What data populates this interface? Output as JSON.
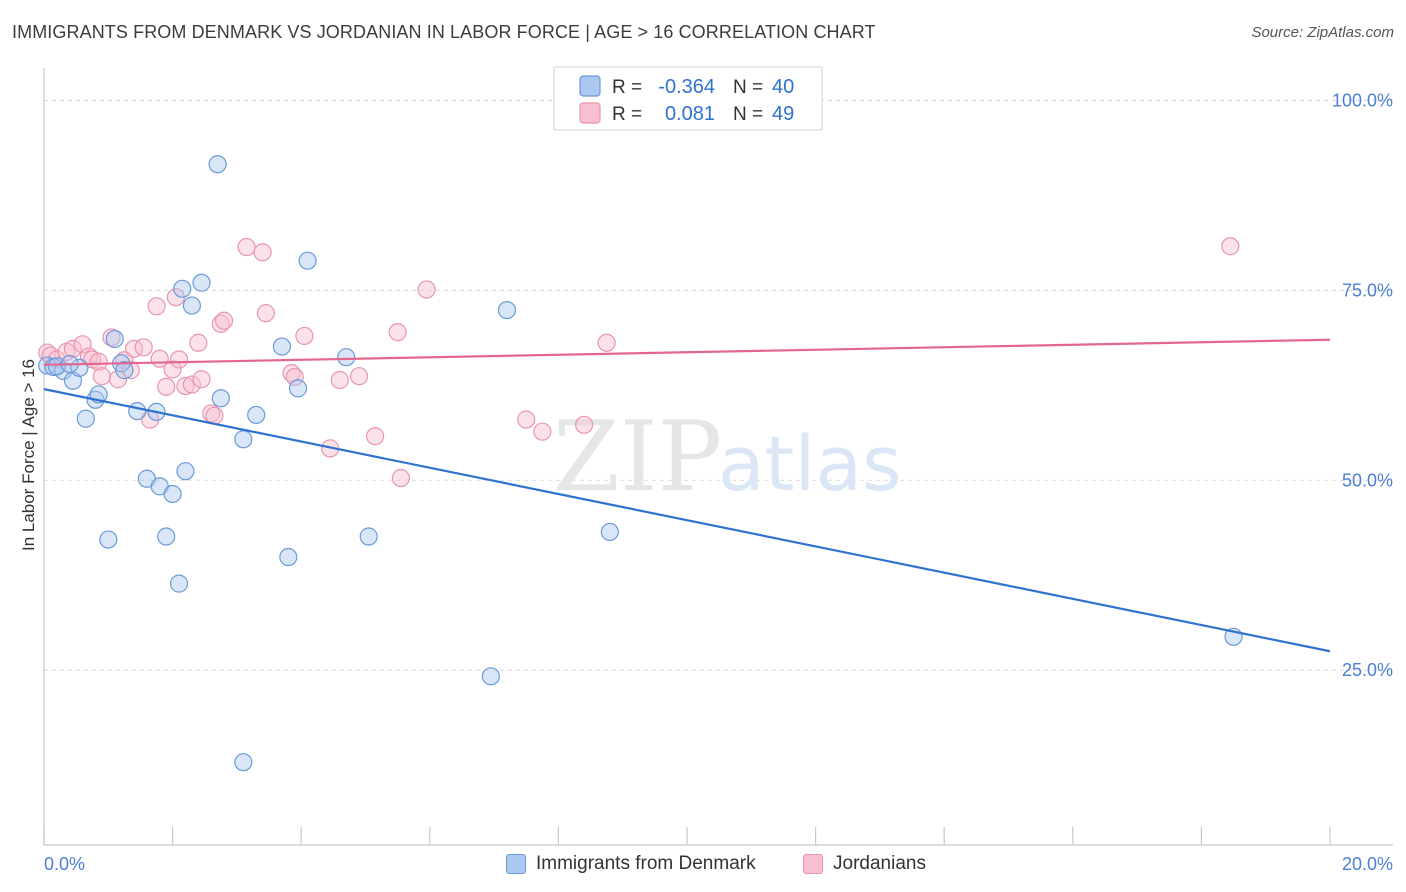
{
  "title": "IMMIGRANTS FROM DENMARK VS JORDANIAN IN LABOR FORCE | AGE > 16 CORRELATION CHART",
  "source": "Source: ZipAtlas.com",
  "colors": {
    "blue_fill": "#aac8f0",
    "blue_stroke": "#6a9ad8",
    "blue_line": "#2f72d0",
    "pink_fill": "#f7bfd0",
    "pink_stroke": "#e895b0",
    "pink_line": "#e2668e",
    "axis_text": "#4a7fd4",
    "grid": "#d8d8d8"
  },
  "chart_data": {
    "type": "scatter",
    "title": "IMMIGRANTS FROM DENMARK VS JORDANIAN IN LABOR FORCE | AGE > 16 CORRELATION CHART",
    "xlabel": "",
    "ylabel": "In Labor Force | Age > 16",
    "xlim": [
      0,
      20
    ],
    "ylim": [
      2,
      104
    ],
    "x_ticks": [
      "0.0%",
      "20.0%"
    ],
    "y_ticks": [
      {
        "value": 25,
        "label": "25.0%"
      },
      {
        "value": 50,
        "label": "50.0%"
      },
      {
        "value": 75,
        "label": "75.0%"
      },
      {
        "value": 100,
        "label": "100.0%"
      }
    ],
    "watermark": {
      "part1": "ZIP",
      "part2": "atlas"
    },
    "stats": [
      {
        "r_label": "R =",
        "r": "-0.364",
        "n_label": "N =",
        "n": "40"
      },
      {
        "r_label": "R =",
        "r": "0.081",
        "n_label": "N =",
        "n": "49"
      }
    ],
    "series": [
      {
        "name": "Immigrants from Denmark",
        "trend": {
          "x0": 0,
          "y0": 62.0,
          "x1": 20,
          "y1": 27.5
        },
        "points": [
          [
            0.05,
            65.1
          ],
          [
            0.15,
            64.9
          ],
          [
            0.3,
            64.4
          ],
          [
            0.45,
            63.1
          ],
          [
            0.55,
            64.8
          ],
          [
            0.65,
            58.1
          ],
          [
            0.8,
            60.6
          ],
          [
            0.85,
            61.3
          ],
          [
            1.1,
            68.6
          ],
          [
            1.2,
            65.4
          ],
          [
            1.25,
            64.5
          ],
          [
            1.45,
            59.1
          ],
          [
            1.6,
            50.2
          ],
          [
            1.8,
            49.2
          ],
          [
            1.9,
            42.6
          ],
          [
            2.1,
            36.4
          ],
          [
            2.0,
            48.2
          ],
          [
            2.2,
            51.2
          ],
          [
            2.15,
            75.2
          ],
          [
            2.3,
            73.0
          ],
          [
            2.45,
            76.0
          ],
          [
            2.7,
            91.6
          ],
          [
            2.75,
            60.8
          ],
          [
            3.1,
            12.9
          ],
          [
            3.1,
            55.4
          ],
          [
            3.3,
            58.6
          ],
          [
            3.7,
            67.6
          ],
          [
            3.8,
            39.9
          ],
          [
            3.95,
            62.1
          ],
          [
            4.1,
            78.9
          ],
          [
            4.7,
            66.2
          ],
          [
            5.05,
            42.6
          ],
          [
            6.95,
            24.2
          ],
          [
            7.2,
            72.4
          ],
          [
            8.8,
            43.2
          ],
          [
            18.5,
            29.4
          ],
          [
            1.0,
            42.2
          ],
          [
            1.75,
            59.0
          ],
          [
            0.2,
            65.0
          ],
          [
            0.4,
            65.3
          ]
        ]
      },
      {
        "name": "Jordanians",
        "trend": {
          "x0": 0,
          "y0": 65.2,
          "x1": 20,
          "y1": 68.5
        },
        "points": [
          [
            0.05,
            66.8
          ],
          [
            0.1,
            66.4
          ],
          [
            0.2,
            65.9
          ],
          [
            0.35,
            66.9
          ],
          [
            0.45,
            67.3
          ],
          [
            0.6,
            67.9
          ],
          [
            0.7,
            66.3
          ],
          [
            0.75,
            65.9
          ],
          [
            0.85,
            65.6
          ],
          [
            0.9,
            63.7
          ],
          [
            1.05,
            68.8
          ],
          [
            1.15,
            63.3
          ],
          [
            1.25,
            65.8
          ],
          [
            1.35,
            64.5
          ],
          [
            1.4,
            67.3
          ],
          [
            1.55,
            67.5
          ],
          [
            1.65,
            58.0
          ],
          [
            1.75,
            72.9
          ],
          [
            1.8,
            66.0
          ],
          [
            1.9,
            62.3
          ],
          [
            2.0,
            64.6
          ],
          [
            2.05,
            74.1
          ],
          [
            2.1,
            65.9
          ],
          [
            2.2,
            62.4
          ],
          [
            2.3,
            62.6
          ],
          [
            2.4,
            68.1
          ],
          [
            2.45,
            63.3
          ],
          [
            2.6,
            58.8
          ],
          [
            2.65,
            58.5
          ],
          [
            2.75,
            70.6
          ],
          [
            2.8,
            71.0
          ],
          [
            3.15,
            80.7
          ],
          [
            3.4,
            80.0
          ],
          [
            3.45,
            72.0
          ],
          [
            3.85,
            64.1
          ],
          [
            3.9,
            63.6
          ],
          [
            4.05,
            69.0
          ],
          [
            4.45,
            54.2
          ],
          [
            4.6,
            63.2
          ],
          [
            4.9,
            63.7
          ],
          [
            5.15,
            55.8
          ],
          [
            5.5,
            69.5
          ],
          [
            5.55,
            50.3
          ],
          [
            5.95,
            75.1
          ],
          [
            7.5,
            58.0
          ],
          [
            7.75,
            56.4
          ],
          [
            8.4,
            57.3
          ],
          [
            8.75,
            68.1
          ],
          [
            18.45,
            80.8
          ]
        ]
      }
    ]
  }
}
